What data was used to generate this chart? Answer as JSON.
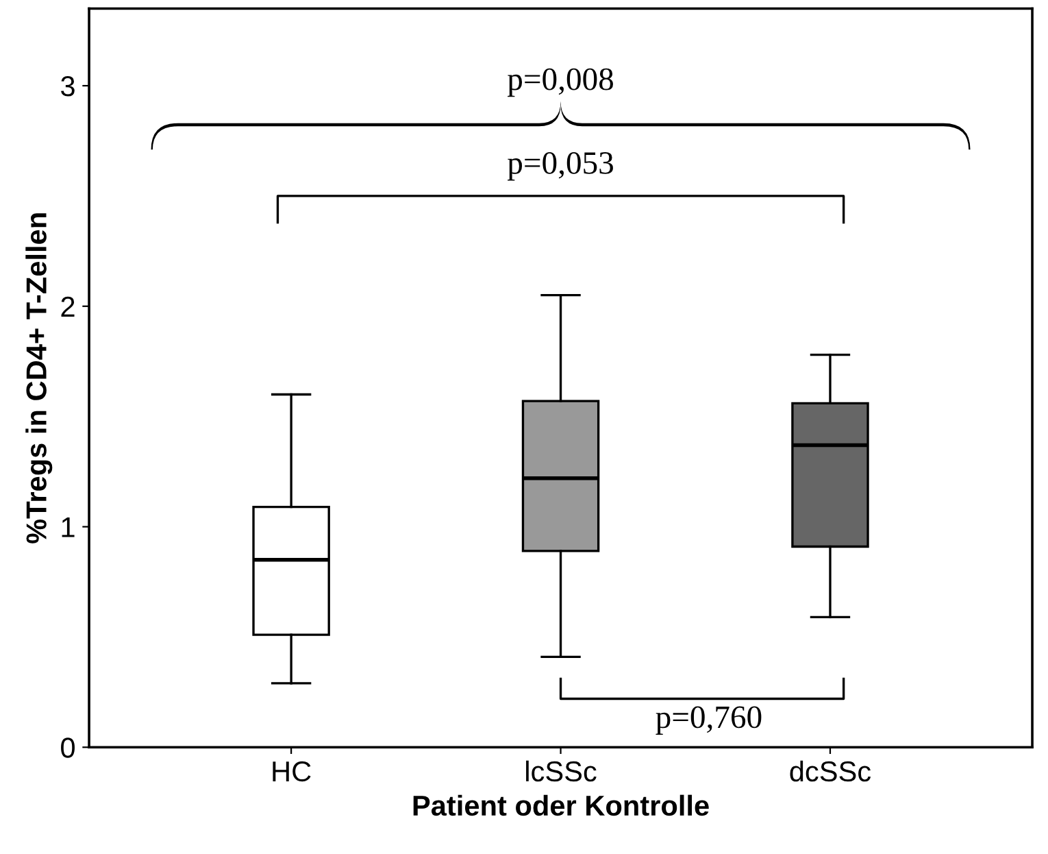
{
  "chart_data": {
    "type": "box",
    "xlabel": "Patient oder Kontrolle",
    "ylabel": "%Tregs in CD4+ T-Zellen",
    "categories": [
      "HC",
      "lcSSc",
      "dcSSc"
    ],
    "colors": [
      "#ffffff",
      "#999999",
      "#666666"
    ],
    "boxes": [
      {
        "low": 0.29,
        "q1": 0.51,
        "median": 0.85,
        "q3": 1.09,
        "high": 1.6
      },
      {
        "low": 0.41,
        "q1": 0.89,
        "median": 1.22,
        "q3": 1.57,
        "high": 2.05
      },
      {
        "low": 0.59,
        "q1": 0.91,
        "median": 1.37,
        "q3": 1.56,
        "high": 1.78
      }
    ],
    "ylim": [
      0,
      3.35
    ],
    "yticks": [
      0,
      1,
      2,
      3
    ],
    "grid": false,
    "annotations": [
      "p=0,008",
      "p=0,053",
      "p=0,760"
    ]
  }
}
